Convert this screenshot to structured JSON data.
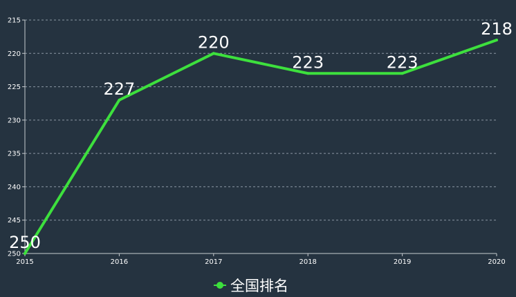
{
  "chart_data": {
    "type": "line",
    "categories": [
      "2015",
      "2016",
      "2017",
      "2018",
      "2019",
      "2020"
    ],
    "series": [
      {
        "name": "全国排名",
        "values": [
          250,
          227,
          220,
          223,
          223,
          218
        ],
        "color": "#3de03d"
      }
    ],
    "y_ticks": [
      "215",
      "220",
      "225",
      "230",
      "235",
      "240",
      "245",
      "250"
    ],
    "ylim": [
      215,
      250
    ],
    "y_inverted": true,
    "grid": true,
    "legend": "bottom-center",
    "colors": {
      "background": "#253340",
      "axis": "#c8ccd0",
      "grid": "#8c98a4",
      "text": "#ffffff"
    }
  }
}
